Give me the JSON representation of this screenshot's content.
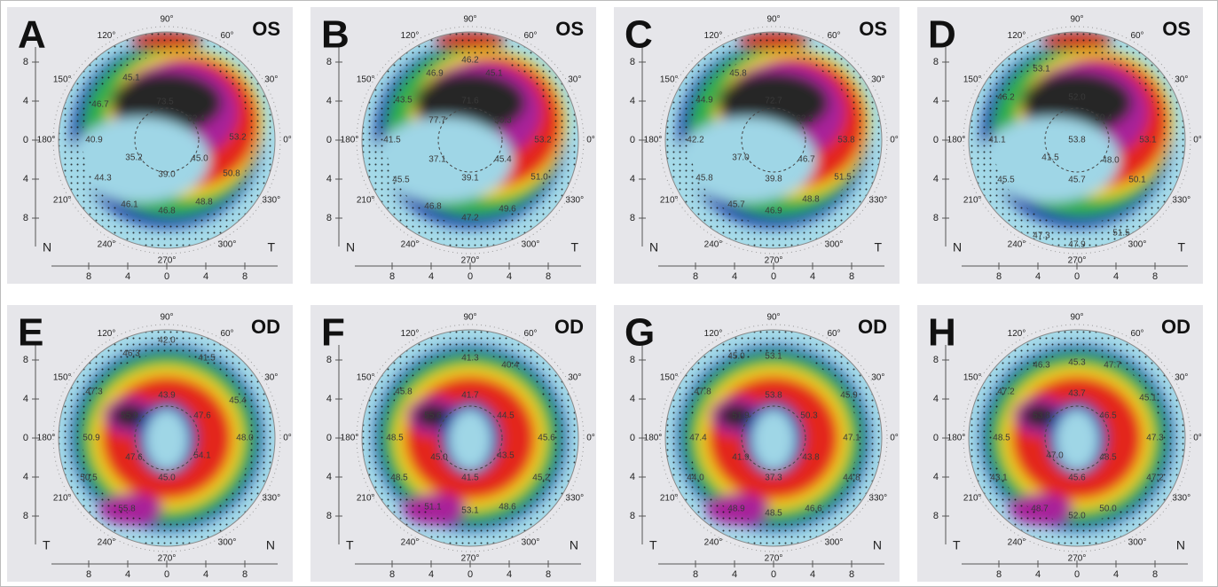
{
  "angle_labels": [
    "90°",
    "120°",
    "150°",
    "180°",
    "210°",
    "240°",
    "270°",
    "300°",
    "330°",
    "0°",
    "30°",
    "60°"
  ],
  "scale_labels": [
    "8",
    "4",
    "0",
    "4",
    "8"
  ],
  "panels": [
    {
      "letter": "A",
      "eye": "OS",
      "left_label": "N",
      "right_label": "T",
      "values": [
        "73.5",
        "62.4",
        "46.7",
        "40.9",
        "35.2",
        "39.0",
        "45.0",
        "53.2",
        "50.8",
        "44.3",
        "46.1",
        "46.8",
        "48.8",
        "45.1"
      ]
    },
    {
      "letter": "B",
      "eye": "OS",
      "left_label": "N",
      "right_label": "T",
      "values": [
        "71.6",
        "77.7",
        "50.3",
        "46.9",
        "45.1",
        "46.2",
        "43.5",
        "41.5",
        "37.1",
        "39.1",
        "45.4",
        "53.2",
        "51.0",
        "45.5",
        "46.8",
        "47.2",
        "49.6"
      ]
    },
    {
      "letter": "C",
      "eye": "OS",
      "left_label": "N",
      "right_label": "T",
      "values": [
        "72.7",
        "62.2",
        "45.8",
        "44.9",
        "42.2",
        "37.0",
        "39.8",
        "46.7",
        "53.8",
        "51.5",
        "45.8",
        "45.7",
        "46.9",
        "48.8"
      ]
    },
    {
      "letter": "D",
      "eye": "OS",
      "left_label": "N",
      "right_label": "T",
      "values": [
        "52.0",
        "53.1",
        "46.2",
        "41.1",
        "41.5",
        "53.8",
        "50.4",
        "48.0",
        "53.1",
        "45.7",
        "45.5",
        "50.1",
        "47.3",
        "47.9",
        "51.5"
      ]
    },
    {
      "letter": "E",
      "eye": "OD",
      "left_label": "T",
      "right_label": "N",
      "values": [
        "42.0",
        "46.3",
        "41.5",
        "47.3",
        "43.9",
        "55.9",
        "47.6",
        "45.4",
        "50.9",
        "48.0",
        "47.6",
        "54.1",
        "50.5",
        "45.0",
        "55.8"
      ]
    },
    {
      "letter": "F",
      "eye": "OD",
      "left_label": "T",
      "right_label": "N",
      "values": [
        "41.3",
        "40.4",
        "45.8",
        "41.7",
        "55.6",
        "44.5",
        "48.5",
        "45.6",
        "45.0",
        "43.5",
        "48.5",
        "41.5",
        "45.2",
        "51.1",
        "53.1",
        "48.6"
      ]
    },
    {
      "letter": "G",
      "eye": "OD",
      "left_label": "T",
      "right_label": "N",
      "values": [
        "45.0",
        "53.1",
        "47.8",
        "53.8",
        "51.9",
        "50.3",
        "45.9",
        "47.4",
        "47.1",
        "41.9",
        "43.8",
        "44.0",
        "37.3",
        "44.8",
        "48.9",
        "48.5",
        "46.6"
      ]
    },
    {
      "letter": "H",
      "eye": "OD",
      "left_label": "T",
      "right_label": "N",
      "values": [
        "45.3",
        "46.3",
        "47.7",
        "47.2",
        "43.7",
        "53.8",
        "46.5",
        "45.1",
        "48.5",
        "47.3",
        "47.0",
        "48.5",
        "45.6",
        "43.1",
        "47.2",
        "48.7",
        "50.0",
        "52.0"
      ]
    }
  ]
}
